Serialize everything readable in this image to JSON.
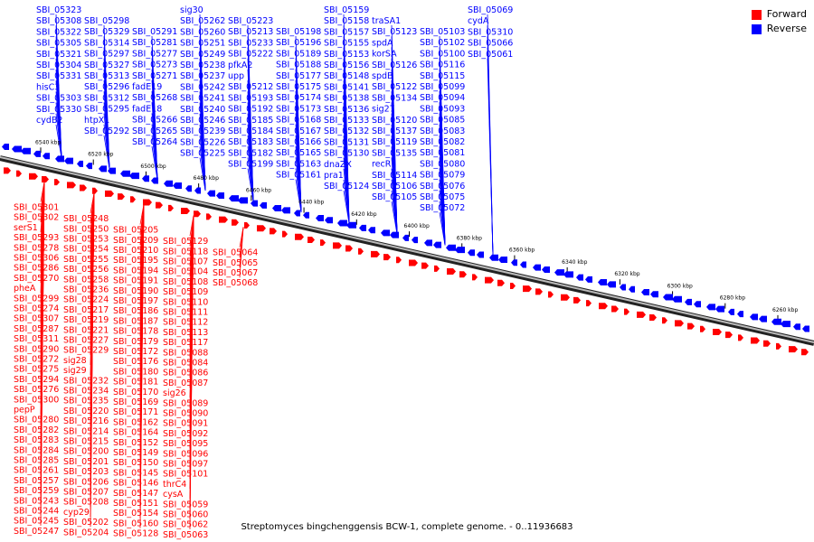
{
  "colors": {
    "forward": "#ff0000",
    "reverse": "#0000ff",
    "backbone": "#888888"
  },
  "legend": {
    "forward_label": "Forward",
    "reverse_label": "Reverse"
  },
  "caption": "Streptomyces bingchenggensis BCW-1, complete genome. - 0..11936683",
  "upper_ticks": [
    "6540 kbp",
    "6520 kbp",
    "6500 kbp",
    "6480 kbp",
    "6460 kbp",
    "6440 kbp",
    "6420 kbp",
    "6400 kbp",
    "6380 kbp",
    "6360 kbp",
    "6340 kbp",
    "6320 kbp",
    "6300 kbp",
    "6280 kbp",
    "6260 kbp"
  ],
  "lower_ticks": [],
  "reverse_genes": [
    "SBI_05323",
    "SBI_05308",
    "SBI_05322",
    "SBI_05305",
    "SBI_05321",
    "SBI_05304",
    "SBI_05331",
    "hisC3",
    "SBI_05303",
    "SBI_05330",
    "cydB2",
    "SBI_05298",
    "SBI_05329",
    "SBI_05314",
    "SBI_05297",
    "SBI_05327",
    "SBI_05313",
    "SBI_05296",
    "SBI_05312",
    "SBI_05295",
    "htpX1",
    "SBI_05292",
    "SBI_05291",
    "SBI_05281",
    "SBI_05277",
    "SBI_05273",
    "SBI_05271",
    "fadE19",
    "SBI_05268",
    "fadE18",
    "SBI_05266",
    "SBI_05265",
    "SBI_05264",
    "sig30",
    "SBI_05262",
    "SBI_05260",
    "SBI_05251",
    "SBI_05249",
    "SBI_05238",
    "SBI_05237",
    "SBI_05242",
    "SBI_05241",
    "SBI_05240",
    "SBI_05246",
    "SBI_05239",
    "SBI_05226",
    "SBI_05225",
    "SBI_05223",
    "SBI_05213",
    "SBI_05233",
    "SBI_05222",
    "pfkA2",
    "upp",
    "SBI_05212",
    "SBI_05193",
    "SBI_05192",
    "SBI_05185",
    "SBI_05184",
    "SBI_05183",
    "SBI_05182",
    "SBI_05199",
    "SBI_05198",
    "SBI_05196",
    "SBI_05189",
    "SBI_05188",
    "SBI_05177",
    "SBI_05175",
    "SBI_05174",
    "SBI_05173",
    "SBI_05168",
    "SBI_05167",
    "SBI_05166",
    "SBI_05165",
    "SBI_05163",
    "SBI_05161",
    "SBI_05159",
    "SBI_05158",
    "SBI_05157",
    "SBI_05155",
    "SBI_05153",
    "SBI_05156",
    "SBI_05148",
    "SBI_05141",
    "SBI_05138",
    "SBI_05136",
    "SBI_05133",
    "SBI_05132",
    "SBI_05131",
    "SBI_05130",
    "dnaZX",
    "pra1",
    "SBI_05124",
    "traSA1",
    "SBI_05123",
    "spdA",
    "korSA",
    "SBI_05126",
    "spdB",
    "SBI_05122",
    "SBI_05134",
    "sig27",
    "SBI_05120",
    "SBI_05137",
    "SBI_05119",
    "SBI_05135",
    "recR",
    "SBI_05114",
    "SBI_05106",
    "SBI_05105",
    "SBI_05103",
    "SBI_05102",
    "SBI_05100",
    "SBI_05116",
    "SBI_05115",
    "SBI_05099",
    "SBI_05094",
    "SBI_05093",
    "SBI_05085",
    "SBI_05083",
    "SBI_05082",
    "SBI_05081",
    "SBI_05080",
    "SBI_05079",
    "SBI_05076",
    "SBI_05075",
    "SBI_05072",
    "SBI_05069",
    "cydA",
    "SBI_05310",
    "SBI_05066",
    "SBI_05061"
  ],
  "forward_genes": [
    "SBI_05301",
    "SBI_05302",
    "serS1",
    "SBI_05293",
    "SBI_05278",
    "SBI_05306",
    "SBI_05286",
    "SBI_05270",
    "pheA",
    "SBI_05299",
    "SBI_05274",
    "SBI_05307",
    "SBI_05287",
    "SBI_05311",
    "SBI_05290",
    "SBI_05272",
    "SBI_05275",
    "SBI_05294",
    "SBI_05276",
    "SBI_05300",
    "pepP",
    "SBI_05280",
    "SBI_05282",
    "SBI_05283",
    "SBI_05284",
    "SBI_05285",
    "SBI_05261",
    "SBI_05257",
    "SBI_05259",
    "SBI_05243",
    "SBI_05244",
    "SBI_05245",
    "SBI_05247",
    "SBI_05248",
    "SBI_05250",
    "SBI_05253",
    "SBI_05254",
    "SBI_05255",
    "SBI_05256",
    "SBI_05258",
    "SBI_05236",
    "SBI_05224",
    "SBI_05217",
    "SBI_05219",
    "SBI_05221",
    "SBI_05227",
    "SBI_05229",
    "sig28",
    "sig29",
    "SBI_05232",
    "SBI_05234",
    "SBI_05235",
    "SBI_05220",
    "SBI_05216",
    "SBI_05214",
    "SBI_05215",
    "SBI_05200",
    "SBI_05201",
    "SBI_05203",
    "SBI_05206",
    "SBI_05207",
    "SBI_05208",
    "cyp29",
    "SBI_05202",
    "SBI_05204",
    "SBI_05205",
    "SBI_05209",
    "SBI_05210",
    "SBI_05195",
    "SBI_05194",
    "SBI_05191",
    "SBI_05190",
    "SBI_05197",
    "SBI_05186",
    "SBI_05187",
    "SBI_05178",
    "SBI_05179",
    "SBI_05172",
    "SBI_05176",
    "SBI_05180",
    "SBI_05181",
    "SBI_05170",
    "SBI_05169",
    "SBI_05171",
    "SBI_05162",
    "SBI_05164",
    "SBI_05152",
    "SBI_05149",
    "SBI_05150",
    "SBI_05145",
    "SBI_05146",
    "SBI_05147",
    "SBI_05151",
    "SBI_05154",
    "SBI_05160",
    "SBI_05128",
    "SBI_05129",
    "SBI_05118",
    "SBI_05107",
    "SBI_05104",
    "SBI_05108",
    "SBI_05109",
    "SBI_05110",
    "SBI_05111",
    "SBI_05112",
    "SBI_05113",
    "SBI_05117",
    "SBI_05088",
    "SBI_05084",
    "SBI_05086",
    "SBI_05087",
    "sig26",
    "SBI_05089",
    "SBI_05090",
    "SBI_05091",
    "SBI_05092",
    "SBI_05095",
    "SBI_05096",
    "SBI_05097",
    "SBI_05101",
    "thrC4",
    "cysA",
    "SBI_05059",
    "SBI_05060",
    "SBI_05062",
    "SBI_05063",
    "SBI_05064",
    "SBI_05065",
    "SBI_05067",
    "SBI_05068"
  ]
}
